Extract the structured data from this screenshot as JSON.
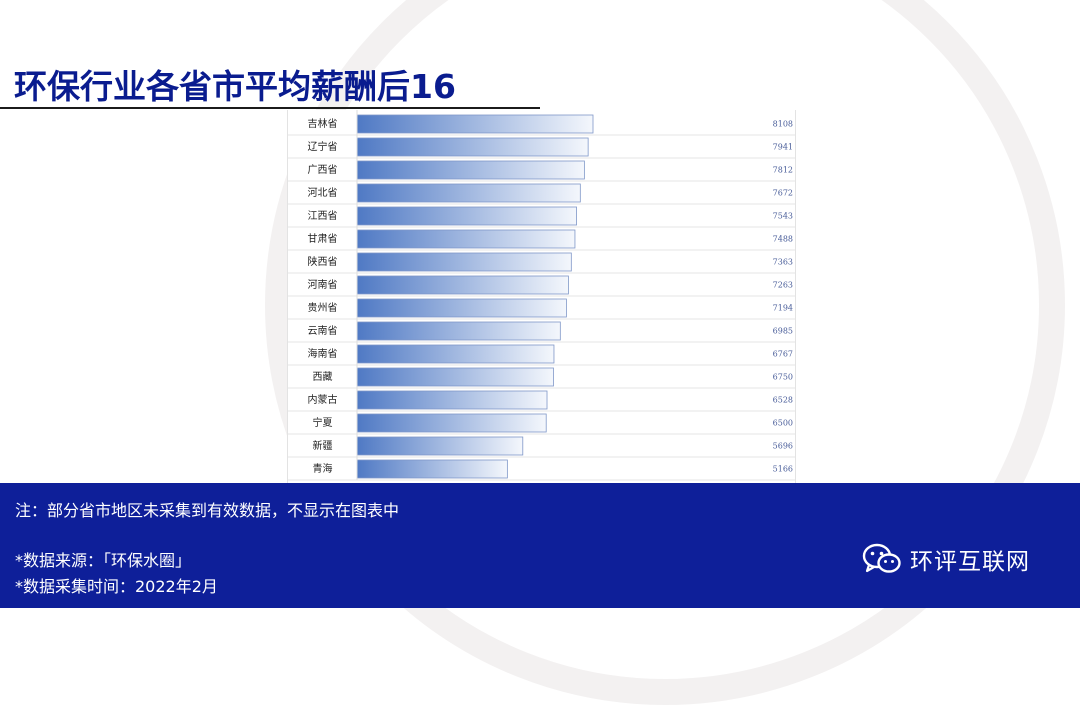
{
  "slide": {
    "title": "环保行业各省市平均薪酬后16"
  },
  "footer": {
    "note": "注：部分省市地区未采集到有效数据，不显示在图表中",
    "source": "*数据来源：「环保水圈」",
    "collect_time": "*数据采集时间：2022年2月",
    "brand": "环评互联网"
  },
  "colors": {
    "title": "#0a1c8f",
    "footer_bg": "#0e1f99",
    "bar_dark": "#4f79c4",
    "bar_light": "#f4f7fc",
    "value_text": "#4a5e9a"
  },
  "icons": {
    "brand_logo": "wechat-icon"
  },
  "chart_data": {
    "type": "bar",
    "orientation": "horizontal",
    "categories": [
      "吉林省",
      "辽宁省",
      "广西省",
      "河北省",
      "江西省",
      "甘肃省",
      "陕西省",
      "河南省",
      "贵州省",
      "云南省",
      "海南省",
      "西藏",
      "内蒙古",
      "宁夏",
      "新疆",
      "青海"
    ],
    "values": [
      8108,
      7941,
      7812,
      7672,
      7543,
      7488,
      7363,
      7263,
      7194,
      6985,
      6767,
      6750,
      6528,
      6500,
      5696,
      5166
    ],
    "title": "",
    "xlabel": "",
    "ylabel": "",
    "grid": true
  }
}
